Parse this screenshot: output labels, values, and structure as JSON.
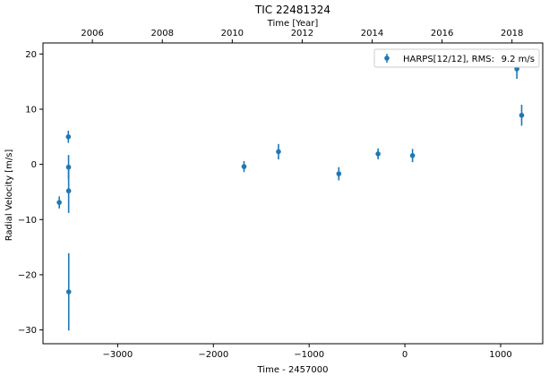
{
  "chart_data": {
    "type": "scatter",
    "title": "TIC 22481324",
    "xlabel": "Time - 2457000",
    "ylabel": "Radial Velocity [m/s]",
    "top_xlabel": "Time [Year]",
    "xlim": [
      -3780,
      1440
    ],
    "ylim": [
      -32.5,
      22
    ],
    "xticks": [
      -3000,
      -2000,
      -1000,
      0,
      1000
    ],
    "xtick_labels": [
      "−3000",
      "−2000",
      "−1000",
      "0",
      "1000"
    ],
    "yticks": [
      -30,
      -20,
      -10,
      0,
      10,
      20
    ],
    "ytick_labels": [
      "−30",
      "−20",
      "−10",
      "0",
      "10",
      "20"
    ],
    "top_xticks": [
      2006,
      2008,
      2010,
      2012,
      2014,
      2016,
      2018
    ],
    "top_xtick_labels": [
      "2006",
      "2008",
      "2010",
      "2012",
      "2014",
      "2016",
      "2018"
    ],
    "grid": false,
    "legend_position": "top-right",
    "color": "#1f77b4",
    "series": [
      {
        "name": "HARPS[12/12], RMS:",
        "rms": "9.2 m/s",
        "x": [
          -3610,
          -3515,
          -3513,
          -3512,
          -3511,
          -1680,
          -1320,
          -690,
          -280,
          80,
          1170,
          1220
        ],
        "y": [
          -6.9,
          5.0,
          -0.5,
          -4.8,
          -23.1,
          -0.4,
          2.3,
          -1.7,
          1.9,
          1.6,
          17.3,
          8.9
        ],
        "yerr": [
          1.1,
          1.1,
          2.2,
          4.0,
          7.0,
          1.0,
          1.4,
          1.2,
          1.0,
          1.2,
          1.8,
          1.9
        ]
      }
    ]
  }
}
